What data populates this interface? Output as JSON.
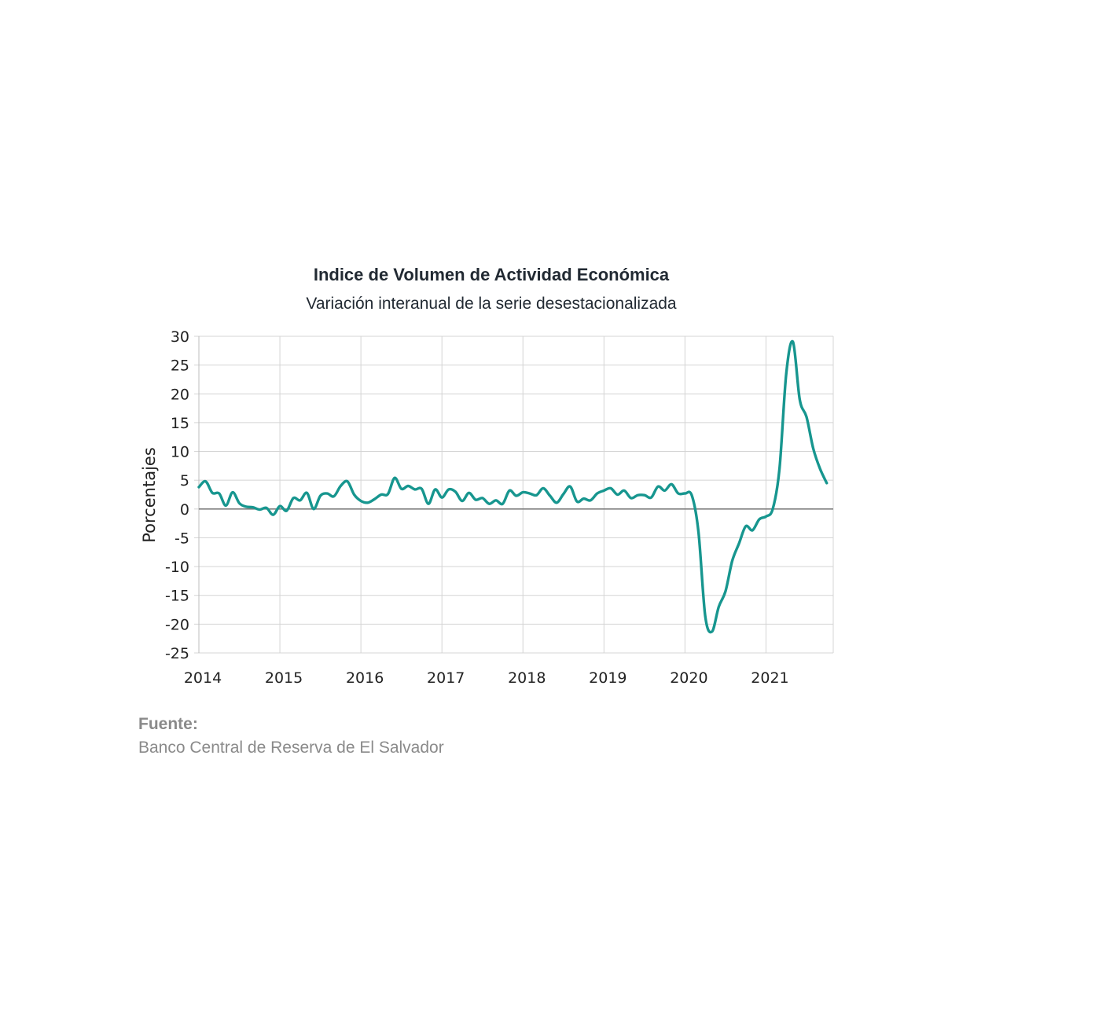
{
  "colors": {
    "series": "#17968f",
    "grid": "#d4d4d4",
    "zero_line": "#7f7f7f",
    "source": "#8a8a8a"
  },
  "chart_data": {
    "type": "line",
    "title": "Indice de Volumen de  Actividad Económica",
    "subtitle": "Variación interanual de la serie desestacionalizada",
    "xlabel": "",
    "ylabel": "Porcentajes",
    "xlim": [
      2014,
      2021.83
    ],
    "ylim": [
      -25,
      30
    ],
    "grid": true,
    "legend": "none",
    "x_ticks": [
      "2014",
      "2015",
      "2016",
      "2017",
      "2018",
      "2019",
      "2020",
      "2021"
    ],
    "y_ticks": [
      "30",
      "25",
      "20",
      "15",
      "10",
      "5",
      "0",
      "-5",
      "-10",
      "-15",
      "-20",
      "-25"
    ],
    "series": [
      {
        "x_start": 2014,
        "step_months": 1,
        "values": [
          3.8,
          4.8,
          2.8,
          2.7,
          0.6,
          2.9,
          1.0,
          0.4,
          0.3,
          -0.1,
          0.2,
          -1.0,
          0.5,
          -0.3,
          1.9,
          1.5,
          2.8,
          0.0,
          2.3,
          2.7,
          2.2,
          4.0,
          4.8,
          2.5,
          1.4,
          1.1,
          1.7,
          2.5,
          2.6,
          5.4,
          3.5,
          4.0,
          3.4,
          3.5,
          0.9,
          3.4,
          2.0,
          3.4,
          3.0,
          1.4,
          2.8,
          1.6,
          1.9,
          0.9,
          1.5,
          0.9,
          3.2,
          2.3,
          2.9,
          2.7,
          2.4,
          3.6,
          2.3,
          1.1,
          2.6,
          3.9,
          1.3,
          1.8,
          1.5,
          2.7,
          3.2,
          3.6,
          2.5,
          3.2,
          1.9,
          2.4,
          2.4,
          2.0,
          3.9,
          3.2,
          4.3,
          2.7,
          2.7,
          2.4,
          -4.0,
          -18.6,
          -21.3,
          -17.0,
          -14.3,
          -9.0,
          -6.0,
          -3.0,
          -3.7,
          -1.8,
          -1.3,
          0.0,
          7.0,
          23.5,
          29.0,
          19.0,
          16.0,
          10.5,
          7.0,
          4.5
        ]
      }
    ],
    "source_label": "Fuente:",
    "source_text": "Banco Central de Reserva de El Salvador"
  }
}
